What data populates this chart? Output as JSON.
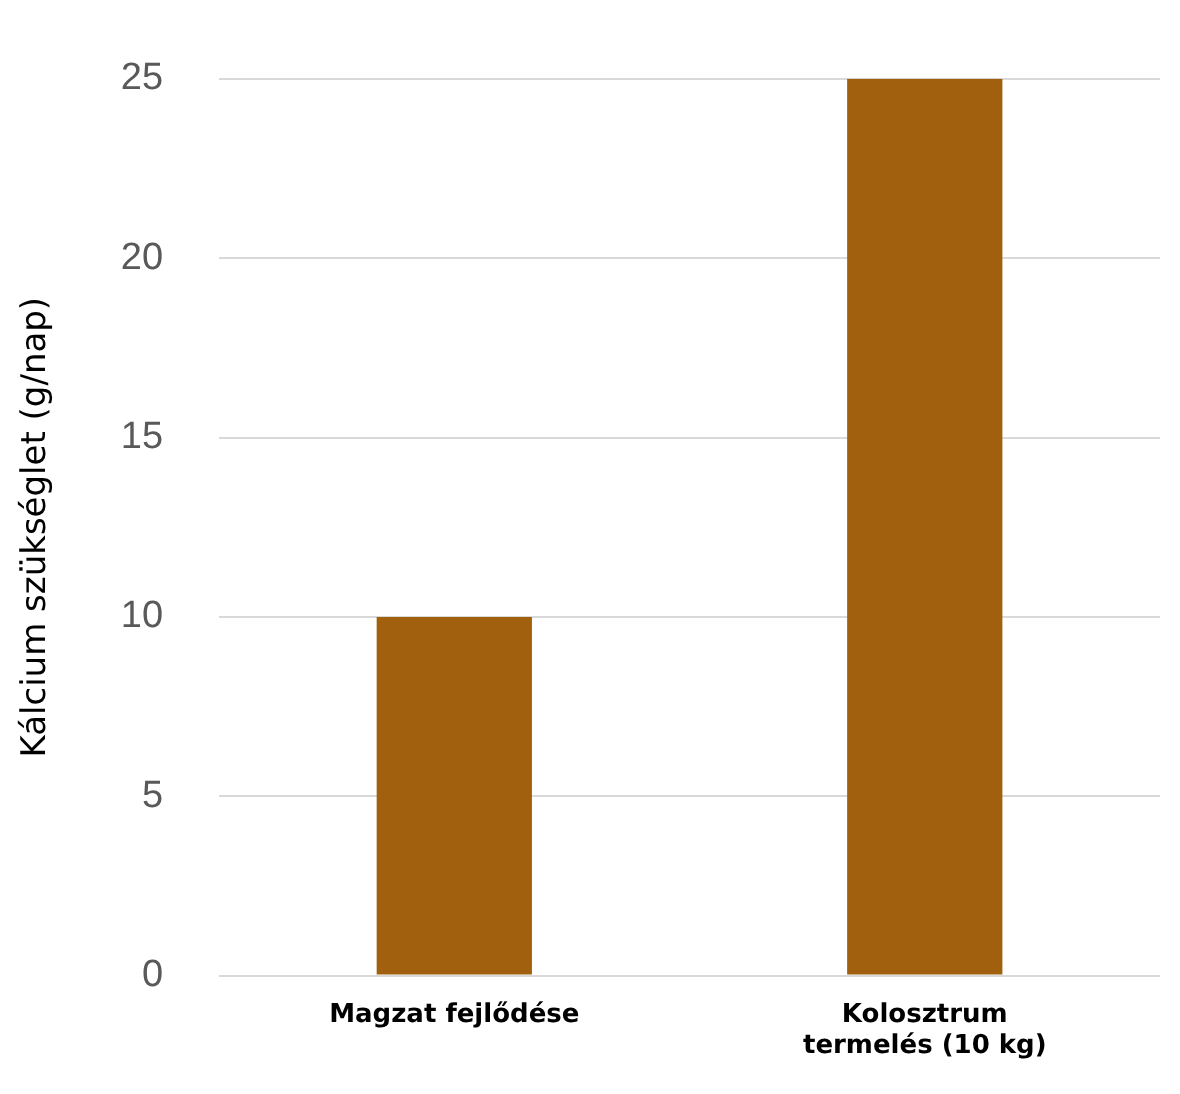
{
  "chart_data": {
    "type": "bar",
    "ylabel": "Kálcium szükséglet (g/nap)",
    "categories": [
      "Magzat fejlődése",
      "Kolosztrum termelés (10 kg)"
    ],
    "values": [
      10,
      25
    ],
    "color": "#a0600e",
    "ylim": [
      0,
      25
    ],
    "yticks": [
      0,
      5,
      10,
      15,
      20,
      25
    ],
    "grid": "y",
    "legend": false
  }
}
